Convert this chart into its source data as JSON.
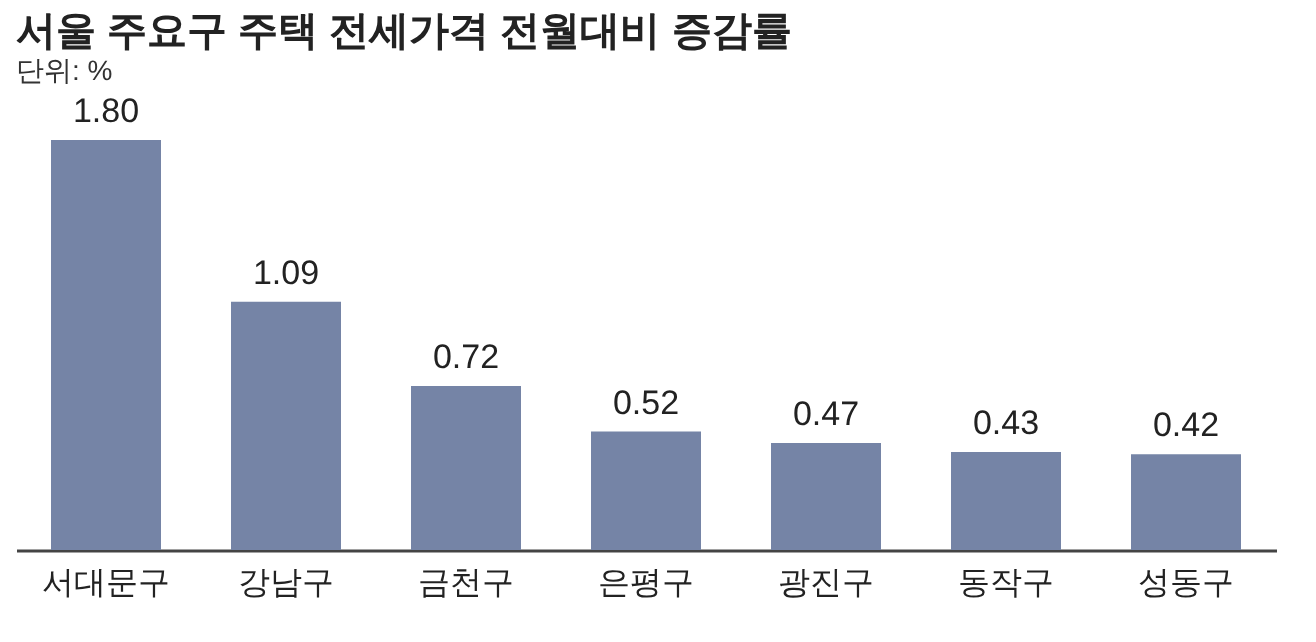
{
  "chart_data": {
    "type": "bar",
    "title": "서울 주요구 주택 전세가격 전월대비 증감률",
    "subtitle": "단위: %",
    "categories": [
      "서대문구",
      "강남구",
      "금천구",
      "은평구",
      "광진구",
      "동작구",
      "성동구"
    ],
    "values": [
      1.8,
      1.09,
      0.72,
      0.52,
      0.47,
      0.43,
      0.42
    ],
    "value_labels": [
      "1.80",
      "1.09",
      "0.72",
      "0.52",
      "0.47",
      "0.43",
      "0.42"
    ],
    "color": "#7584a6",
    "grid": false,
    "tick_labels": "x"
  }
}
